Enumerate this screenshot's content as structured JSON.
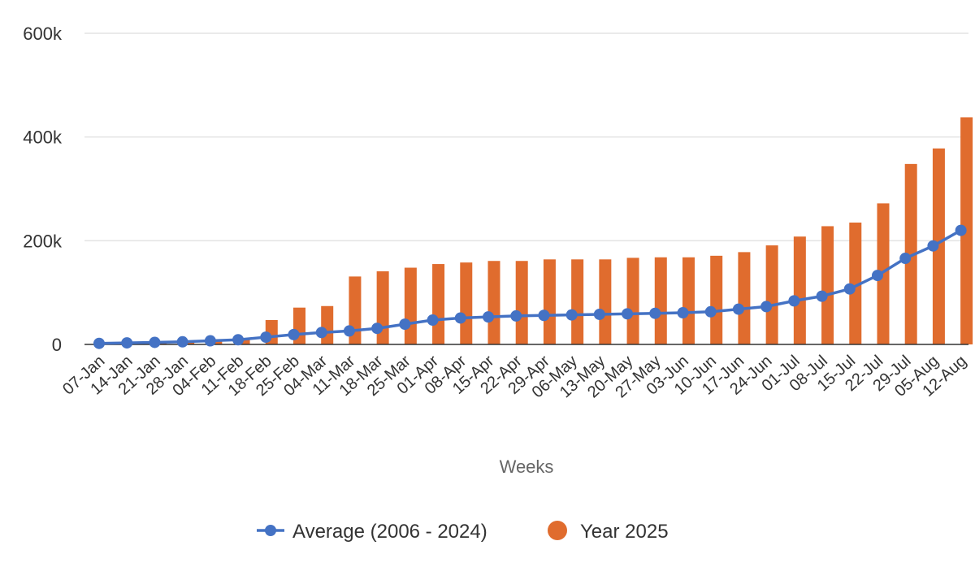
{
  "chart_data": {
    "type": "bar",
    "title": "",
    "xlabel": "Weeks",
    "ylabel": "",
    "ylim": [
      0,
      600000
    ],
    "y_ticks": [
      {
        "value": 0,
        "label": "0"
      },
      {
        "value": 200000,
        "label": "200k"
      },
      {
        "value": 400000,
        "label": "400k"
      },
      {
        "value": 600000,
        "label": "600k"
      }
    ],
    "grid": true,
    "legend": "bottom",
    "categories": [
      "07-Jan",
      "14-Jan",
      "21-Jan",
      "28-Jan",
      "04-Feb",
      "11-Feb",
      "18-Feb",
      "25-Feb",
      "04-Mar",
      "11-Mar",
      "18-Mar",
      "25-Mar",
      "01-Apr",
      "08-Apr",
      "15-Apr",
      "22-Apr",
      "29-Apr",
      "06-May",
      "13-May",
      "20-May",
      "27-May",
      "03-Jun",
      "10-Jun",
      "17-Jun",
      "24-Jun",
      "01-Jul",
      "08-Jul",
      "15-Jul",
      "22-Jul",
      "29-Jul",
      "05-Aug",
      "12-Aug"
    ],
    "series": [
      {
        "name": "Average (2006 - 2024)",
        "kind": "line",
        "color": "#4472C4",
        "values": [
          2000,
          3000,
          4000,
          5000,
          7000,
          9000,
          14000,
          19000,
          23000,
          26000,
          31000,
          39000,
          47000,
          51000,
          53000,
          55000,
          56000,
          57000,
          58000,
          59000,
          60000,
          61000,
          63000,
          68000,
          73000,
          84000,
          93000,
          107000,
          133000,
          166000,
          190000,
          220000
        ]
      },
      {
        "name": "Year 2025",
        "kind": "bar",
        "color": "#E06C2E",
        "values": [
          3000,
          4000,
          5000,
          6000,
          8000,
          10000,
          47000,
          71000,
          74000,
          131000,
          141000,
          148000,
          155000,
          158000,
          161000,
          161000,
          164000,
          164000,
          164000,
          167000,
          168000,
          168000,
          171000,
          178000,
          191000,
          208000,
          228000,
          235000,
          272000,
          348000,
          378000,
          438000
        ]
      }
    ]
  }
}
